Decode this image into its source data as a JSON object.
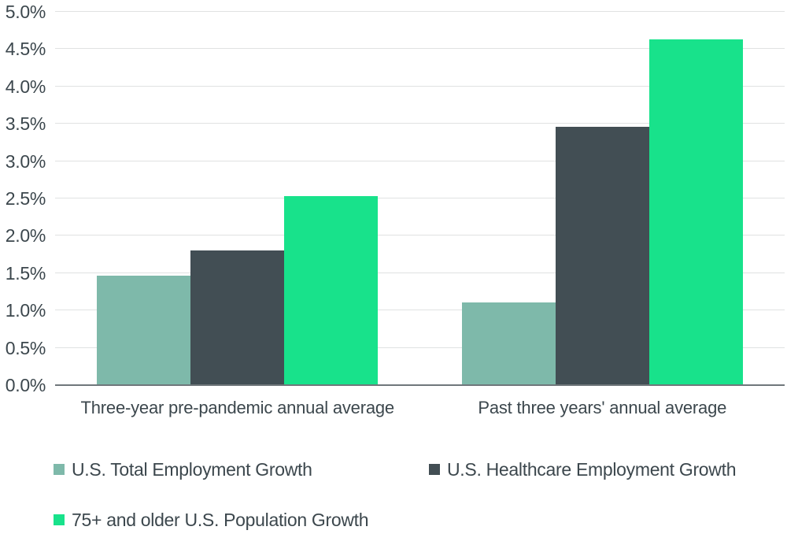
{
  "chart_data": {
    "type": "bar",
    "categories": [
      "Three-year pre-pandemic annual average",
      "Past three years' annual average"
    ],
    "series": [
      {
        "name": "U.S. Total Employment Growth",
        "color": "#7eb9aa",
        "values": [
          1.47,
          1.11
        ]
      },
      {
        "name": "U.S. Healthcare Employment Growth",
        "color": "#424e54",
        "values": [
          1.8,
          3.46
        ]
      },
      {
        "name": "75+ and older U.S. Population Growth",
        "color": "#18e28b",
        "values": [
          2.53,
          4.63
        ]
      }
    ],
    "title": "",
    "xlabel": "",
    "ylabel": "",
    "ylim": [
      0,
      5
    ],
    "ytick_step": 0.5,
    "ytick_labels": [
      "0.0%",
      "0.5%",
      "1.0%",
      "1.5%",
      "2.0%",
      "2.5%",
      "3.0%",
      "3.5%",
      "4.0%",
      "4.5%",
      "5.0%"
    ],
    "grid": "horizontal",
    "legend_position": "bottom",
    "legend_rows": [
      [
        0,
        1
      ],
      [
        2
      ]
    ]
  },
  "colors": {
    "background": "#ffffff",
    "gridline": "#e0e2e2",
    "axis_line": "#70777b",
    "text": "#3c474d"
  }
}
